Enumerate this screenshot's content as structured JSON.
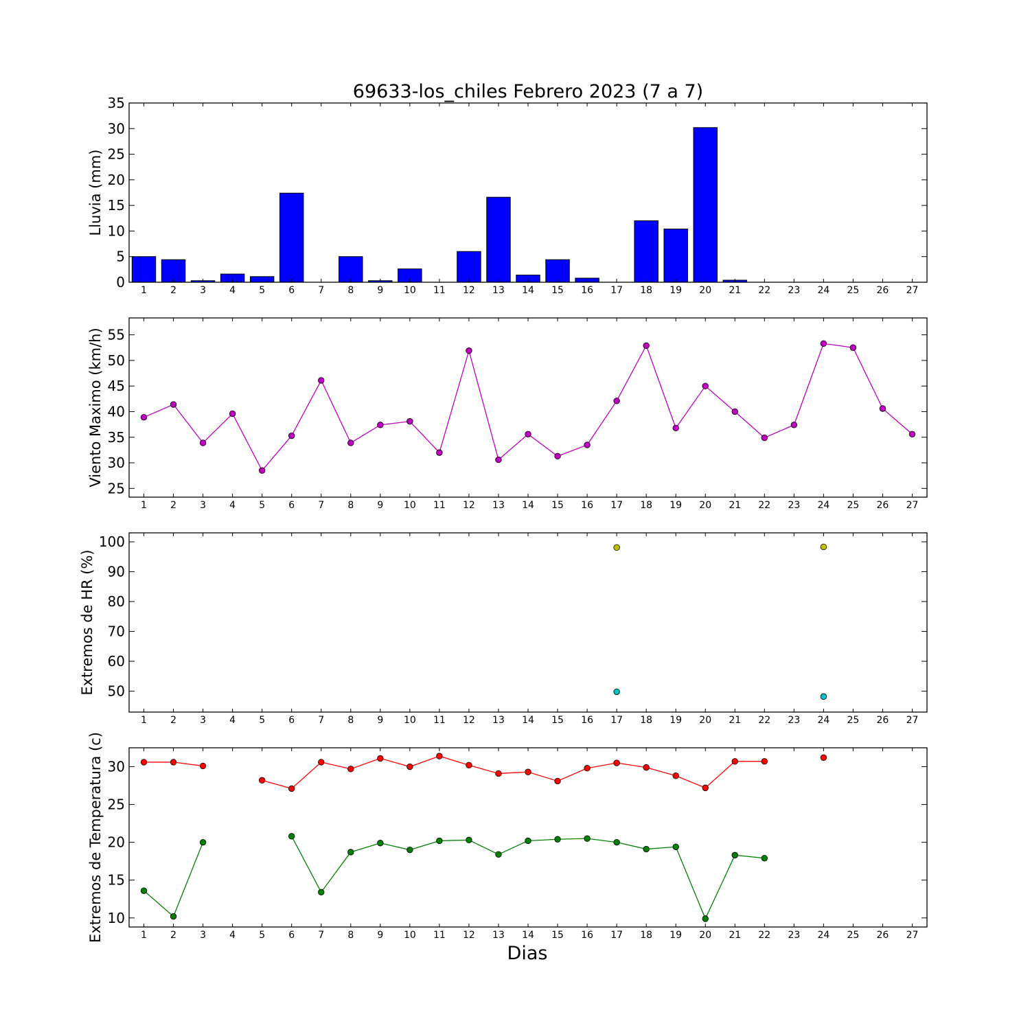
{
  "chart_data": [
    {
      "type": "bar",
      "title": "69633-los_chiles Febrero 2023  (7 a 7)",
      "ylabel": "Lluvia (mm)",
      "xlabel": "",
      "ylim": [
        0,
        35
      ],
      "yticks": [
        0,
        5,
        10,
        15,
        20,
        25,
        30,
        35
      ],
      "categories": [
        "1",
        "2",
        "3",
        "4",
        "5",
        "6",
        "7",
        "8",
        "9",
        "10",
        "11",
        "12",
        "13",
        "14",
        "15",
        "16",
        "17",
        "18",
        "19",
        "20",
        "21",
        "22",
        "23",
        "24",
        "25",
        "26",
        "27"
      ],
      "values": [
        5.0,
        4.4,
        0.3,
        1.6,
        1.1,
        17.4,
        0.0,
        5.0,
        0.3,
        2.6,
        0.0,
        6.0,
        16.6,
        1.4,
        4.4,
        0.8,
        0.0,
        12.0,
        10.4,
        30.2,
        0.4,
        0.0,
        0.0,
        0.0,
        0.0,
        0.0,
        0.0
      ],
      "color": "#0000ff"
    },
    {
      "type": "line",
      "title": "",
      "ylabel": "Viento Maximo (km/h)",
      "xlabel": "",
      "ylim": [
        23.3,
        58.3
      ],
      "yticks": [
        25,
        30,
        35,
        40,
        45,
        50,
        55
      ],
      "x": [
        1,
        2,
        3,
        4,
        5,
        6,
        7,
        8,
        9,
        10,
        11,
        12,
        13,
        14,
        15,
        16,
        17,
        18,
        19,
        20,
        21,
        22,
        23,
        24,
        25,
        26,
        27
      ],
      "series": [
        {
          "values": [
            38.9,
            41.4,
            33.9,
            39.6,
            28.5,
            35.3,
            46.1,
            33.9,
            37.4,
            38.1,
            32.0,
            51.9,
            30.6,
            35.6,
            31.3,
            33.5,
            42.1,
            52.9,
            36.8,
            45.0,
            40.0,
            34.9,
            37.4,
            53.3,
            52.5,
            40.6,
            35.6
          ],
          "color": "#bf00bf"
        }
      ]
    },
    {
      "type": "scatter",
      "title": "",
      "ylabel": "Extremos de HR (%)",
      "xlabel": "",
      "ylim": [
        43,
        103
      ],
      "yticks": [
        50,
        60,
        70,
        80,
        90,
        100
      ],
      "x": [
        1,
        2,
        3,
        4,
        5,
        6,
        7,
        8,
        9,
        10,
        11,
        12,
        13,
        14,
        15,
        16,
        17,
        18,
        19,
        20,
        21,
        22,
        23,
        24,
        25,
        26,
        27
      ],
      "series": [
        {
          "values": [
            null,
            null,
            null,
            null,
            null,
            null,
            null,
            null,
            null,
            null,
            null,
            null,
            null,
            null,
            null,
            null,
            98.1,
            null,
            null,
            null,
            null,
            null,
            null,
            98.3,
            null,
            null,
            null
          ],
          "color": "#bfbf00"
        },
        {
          "values": [
            null,
            null,
            null,
            null,
            null,
            null,
            null,
            null,
            null,
            null,
            null,
            null,
            null,
            null,
            null,
            null,
            49.8,
            null,
            null,
            null,
            null,
            null,
            null,
            48.2,
            null,
            null,
            null
          ],
          "color": "#00bfbf"
        }
      ]
    },
    {
      "type": "line",
      "title": "",
      "ylabel": "Extremos de Temperatura (c)",
      "xlabel": "Dias",
      "ylim": [
        8.8,
        32.5
      ],
      "yticks": [
        10,
        15,
        20,
        25,
        30
      ],
      "x": [
        1,
        2,
        3,
        4,
        5,
        6,
        7,
        8,
        9,
        10,
        11,
        12,
        13,
        14,
        15,
        16,
        17,
        18,
        19,
        20,
        21,
        22,
        23,
        24,
        25,
        26,
        27
      ],
      "series": [
        {
          "values": [
            30.6,
            30.6,
            30.1,
            null,
            28.2,
            27.1,
            30.6,
            29.7,
            31.1,
            30.0,
            31.4,
            30.2,
            29.1,
            29.3,
            28.1,
            29.8,
            30.5,
            29.9,
            28.8,
            27.2,
            30.7,
            30.7,
            null,
            31.2,
            null,
            null,
            null
          ],
          "color": "#ff0000"
        },
        {
          "values": [
            13.6,
            10.2,
            20.0,
            null,
            null,
            20.8,
            13.4,
            18.7,
            19.9,
            19.0,
            20.2,
            20.3,
            18.4,
            20.2,
            20.4,
            20.5,
            20.0,
            19.1,
            19.4,
            9.9,
            18.3,
            17.9,
            null,
            null,
            null,
            null,
            null
          ],
          "color": "#008000"
        }
      ]
    }
  ]
}
